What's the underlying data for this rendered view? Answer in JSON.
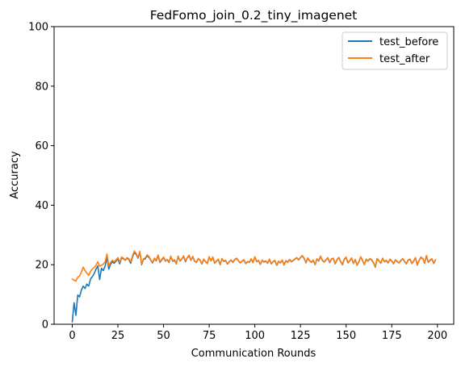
{
  "chart_data": {
    "type": "line",
    "title": "FedFomo_join_0.2_tiny_imagenet",
    "xlabel": "Communication Rounds",
    "ylabel": "Accuracy",
    "xlim": [
      -9.95,
      208.95
    ],
    "ylim": [
      0,
      100
    ],
    "xticks": [
      0,
      25,
      50,
      75,
      100,
      125,
      150,
      175,
      200
    ],
    "yticks": [
      0,
      20,
      40,
      60,
      80,
      100
    ],
    "grid": false,
    "legend": "top-right",
    "series": [
      {
        "name": "test_before",
        "color": "#1f77b4",
        "x": [
          0,
          1,
          2,
          3,
          4,
          5,
          6,
          7,
          8,
          9,
          10,
          11,
          12,
          13,
          14,
          15,
          16,
          17,
          18,
          19,
          20,
          21,
          22,
          23,
          24,
          25,
          26,
          27,
          28,
          29,
          30,
          31,
          32,
          33,
          34,
          35,
          36,
          37,
          38,
          39,
          40,
          41,
          42,
          43,
          44,
          45,
          46,
          47,
          48,
          49,
          50,
          51,
          52,
          53,
          54,
          55,
          56,
          57,
          58,
          59,
          60,
          61,
          62,
          63,
          64,
          65,
          66,
          67,
          68,
          69,
          70,
          71,
          72,
          73,
          74,
          75,
          76,
          77,
          78,
          79,
          80,
          81,
          82,
          83,
          84,
          85,
          86,
          87,
          88,
          89,
          90,
          91,
          92,
          93,
          94,
          95,
          96,
          97,
          98,
          99,
          100,
          101,
          102,
          103,
          104,
          105,
          106,
          107,
          108,
          109,
          110,
          111,
          112,
          113,
          114,
          115,
          116,
          117,
          118,
          119,
          120,
          121,
          122,
          123,
          124,
          125,
          126,
          127,
          128,
          129,
          130,
          131,
          132,
          133,
          134,
          135,
          136,
          137,
          138,
          139,
          140,
          141,
          142,
          143,
          144,
          145,
          146,
          147,
          148,
          149,
          150,
          151,
          152,
          153,
          154,
          155,
          156,
          157,
          158,
          159,
          160,
          161,
          162,
          163,
          164,
          165,
          166,
          167,
          168,
          169,
          170,
          171,
          172,
          173,
          174,
          175,
          176,
          177,
          178,
          179,
          180,
          181,
          182,
          183,
          184,
          185,
          186,
          187,
          188,
          189,
          190,
          191,
          192,
          193,
          194,
          195,
          196,
          197,
          198,
          199
        ],
        "y": [
          0.8,
          7.2,
          3.0,
          9.8,
          9.2,
          11.5,
          12.8,
          12.0,
          13.5,
          12.8,
          15.2,
          16.0,
          17.0,
          18.5,
          19.6,
          15.0,
          18.8,
          18.0,
          19.5,
          22.5,
          18.5,
          20.2,
          21.0,
          20.5,
          21.3,
          21.8,
          20.3,
          22.3,
          22.0,
          21.5,
          22.2,
          21.8,
          20.5,
          22.6,
          24.0,
          23.5,
          22.2,
          24.2,
          20.0,
          21.8,
          22.0,
          23.0,
          22.5,
          21.5,
          20.6,
          22.0,
          21.3,
          23.1,
          20.8,
          21.6,
          22.4,
          21.2,
          21.7,
          20.8,
          22.7,
          21.1,
          21.5,
          20.3,
          22.8,
          21.2,
          21.9,
          22.8,
          21.0,
          22.3,
          23.0,
          21.5,
          22.7,
          21.2,
          20.8,
          22.0,
          21.5,
          20.2,
          21.8,
          21.0,
          20.4,
          22.6,
          21.3,
          22.5,
          20.5,
          21.2,
          21.8,
          20.0,
          22.0,
          21.1,
          21.4,
          20.2,
          21.0,
          21.5,
          20.8,
          21.7,
          22.1,
          21.3,
          20.6,
          21.2,
          21.6,
          20.4,
          21.0,
          20.8,
          21.9,
          20.7,
          22.6,
          21.0,
          21.4,
          20.1,
          21.5,
          20.9,
          21.2,
          20.5,
          21.8,
          20.3,
          21.0,
          21.4,
          19.8,
          21.1,
          20.6,
          21.5,
          19.9,
          21.3,
          20.8,
          21.7,
          21.0,
          21.4,
          21.9,
          22.3,
          21.6,
          22.4,
          23.0,
          22.1,
          20.6,
          22.2,
          21.3,
          20.8,
          21.5,
          20.0,
          21.9,
          21.2,
          22.8,
          21.4,
          20.9,
          21.6,
          22.3,
          20.7,
          21.9,
          22.1,
          20.3,
          21.6,
          22.4,
          21.0,
          20.0,
          21.8,
          22.5,
          20.6,
          21.3,
          22.2,
          20.4,
          21.7,
          19.8,
          21.0,
          22.6,
          21.4,
          20.0,
          21.8,
          21.2,
          22.0,
          21.6,
          20.6,
          19.2,
          22.0,
          21.3,
          20.5,
          22.1,
          21.0,
          21.4,
          20.6,
          21.8,
          21.2,
          20.3,
          21.6,
          21.0,
          20.6,
          21.4,
          22.0,
          21.1,
          20.3,
          21.5,
          21.8,
          20.4,
          21.2,
          22.3,
          19.9,
          21.4,
          22.5,
          22.0,
          20.5,
          23.0,
          20.8,
          21.5,
          21.9,
          20.4,
          21.6
        ]
      },
      {
        "name": "test_after",
        "color": "#ff7f0e",
        "x": [
          0,
          1,
          2,
          3,
          4,
          5,
          6,
          7,
          8,
          9,
          10,
          11,
          12,
          13,
          14,
          15,
          16,
          17,
          18,
          19,
          20,
          21,
          22,
          23,
          24,
          25,
          26,
          27,
          28,
          29,
          30,
          31,
          32,
          33,
          34,
          35,
          36,
          37,
          38,
          39,
          40,
          41,
          42,
          43,
          44,
          45,
          46,
          47,
          48,
          49,
          50,
          51,
          52,
          53,
          54,
          55,
          56,
          57,
          58,
          59,
          60,
          61,
          62,
          63,
          64,
          65,
          66,
          67,
          68,
          69,
          70,
          71,
          72,
          73,
          74,
          75,
          76,
          77,
          78,
          79,
          80,
          81,
          82,
          83,
          84,
          85,
          86,
          87,
          88,
          89,
          90,
          91,
          92,
          93,
          94,
          95,
          96,
          97,
          98,
          99,
          100,
          101,
          102,
          103,
          104,
          105,
          106,
          107,
          108,
          109,
          110,
          111,
          112,
          113,
          114,
          115,
          116,
          117,
          118,
          119,
          120,
          121,
          122,
          123,
          124,
          125,
          126,
          127,
          128,
          129,
          130,
          131,
          132,
          133,
          134,
          135,
          136,
          137,
          138,
          139,
          140,
          141,
          142,
          143,
          144,
          145,
          146,
          147,
          148,
          149,
          150,
          151,
          152,
          153,
          154,
          155,
          156,
          157,
          158,
          159,
          160,
          161,
          162,
          163,
          164,
          165,
          166,
          167,
          168,
          169,
          170,
          171,
          172,
          173,
          174,
          175,
          176,
          177,
          178,
          179,
          180,
          181,
          182,
          183,
          184,
          185,
          186,
          187,
          188,
          189,
          190,
          191,
          192,
          193,
          194,
          195,
          196,
          197,
          198,
          199
        ],
        "y": [
          15.2,
          14.8,
          14.5,
          15.8,
          16.2,
          17.5,
          19.2,
          18.0,
          17.2,
          16.4,
          17.8,
          18.6,
          19.0,
          19.8,
          21.0,
          19.5,
          19.8,
          20.2,
          21.0,
          23.6,
          19.6,
          20.8,
          21.5,
          21.0,
          21.6,
          22.4,
          20.8,
          22.6,
          22.2,
          21.6,
          22.4,
          22.0,
          21.0,
          23.0,
          24.6,
          23.8,
          22.4,
          24.5,
          20.2,
          22.0,
          22.3,
          23.3,
          22.8,
          21.6,
          20.8,
          22.2,
          21.5,
          23.3,
          21.0,
          21.8,
          22.6,
          21.3,
          21.8,
          21.0,
          22.9,
          21.2,
          21.7,
          20.5,
          22.9,
          21.3,
          22.0,
          23.0,
          21.2,
          22.4,
          23.2,
          21.6,
          22.8,
          21.3,
          20.9,
          22.1,
          21.6,
          20.3,
          21.9,
          21.1,
          20.5,
          22.7,
          21.4,
          22.6,
          20.6,
          21.3,
          21.9,
          20.1,
          22.1,
          21.2,
          21.5,
          20.3,
          21.1,
          21.6,
          20.9,
          21.8,
          22.2,
          21.4,
          20.7,
          21.3,
          21.7,
          20.5,
          21.1,
          20.9,
          22.0,
          20.8,
          22.7,
          21.1,
          21.5,
          20.2,
          21.6,
          21.0,
          21.3,
          20.6,
          21.9,
          20.4,
          21.1,
          21.5,
          19.9,
          21.2,
          20.7,
          21.6,
          20.0,
          21.4,
          20.9,
          21.8,
          21.1,
          21.5,
          22.0,
          22.4,
          21.7,
          22.5,
          23.1,
          22.2,
          20.7,
          22.3,
          21.4,
          20.9,
          21.6,
          20.1,
          22.0,
          21.3,
          22.9,
          21.5,
          21.0,
          21.7,
          22.4,
          20.8,
          22.0,
          22.2,
          20.4,
          21.7,
          22.5,
          21.1,
          20.1,
          21.9,
          22.6,
          20.7,
          21.4,
          22.3,
          20.5,
          21.8,
          19.9,
          21.1,
          22.7,
          21.5,
          20.1,
          21.9,
          21.3,
          22.1,
          21.7,
          20.7,
          19.3,
          22.1,
          21.4,
          20.6,
          22.2,
          21.1,
          21.5,
          20.7,
          21.9,
          21.3,
          20.4,
          21.7,
          21.1,
          20.7,
          21.5,
          22.1,
          21.2,
          20.4,
          21.6,
          21.9,
          20.5,
          21.3,
          22.4,
          20.0,
          21.5,
          22.6,
          22.1,
          20.6,
          23.1,
          20.9,
          21.6,
          22.0,
          20.5,
          21.7
        ]
      }
    ]
  }
}
